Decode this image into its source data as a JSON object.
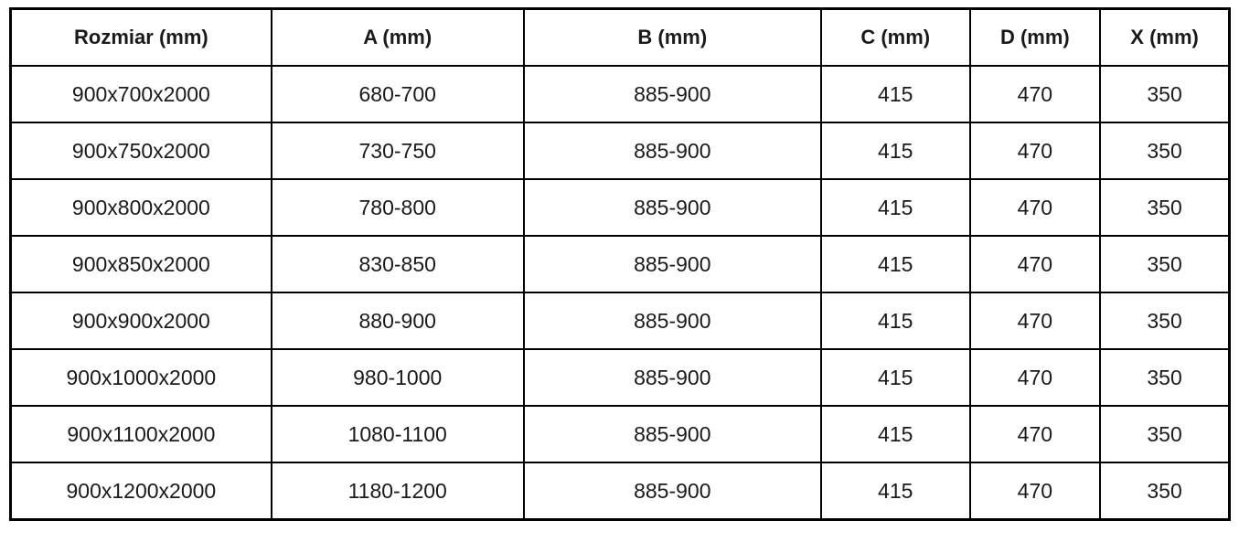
{
  "colors": {
    "border": "#000000",
    "text": "#1a1a1a",
    "background": "#ffffff"
  },
  "table": {
    "columns": [
      {
        "label": "Rozmiar (mm)"
      },
      {
        "label": "A (mm)"
      },
      {
        "label": "B (mm)"
      },
      {
        "label": "C (mm)"
      },
      {
        "label": "D (mm)"
      },
      {
        "label": "X (mm)"
      }
    ],
    "rows": [
      {
        "cells": [
          "900x700x2000",
          "680-700",
          "885-900",
          "415",
          "470",
          "350"
        ]
      },
      {
        "cells": [
          "900x750x2000",
          "730-750",
          "885-900",
          "415",
          "470",
          "350"
        ]
      },
      {
        "cells": [
          "900x800x2000",
          "780-800",
          "885-900",
          "415",
          "470",
          "350"
        ]
      },
      {
        "cells": [
          "900x850x2000",
          "830-850",
          "885-900",
          "415",
          "470",
          "350"
        ]
      },
      {
        "cells": [
          "900x900x2000",
          "880-900",
          "885-900",
          "415",
          "470",
          "350"
        ]
      },
      {
        "cells": [
          "900x1000x2000",
          "980-1000",
          "885-900",
          "415",
          "470",
          "350"
        ]
      },
      {
        "cells": [
          "900x1100x2000",
          "1080-1100",
          "885-900",
          "415",
          "470",
          "350"
        ]
      },
      {
        "cells": [
          "900x1200x2000",
          "1180-1200",
          "885-900",
          "415",
          "470",
          "350"
        ]
      }
    ]
  }
}
